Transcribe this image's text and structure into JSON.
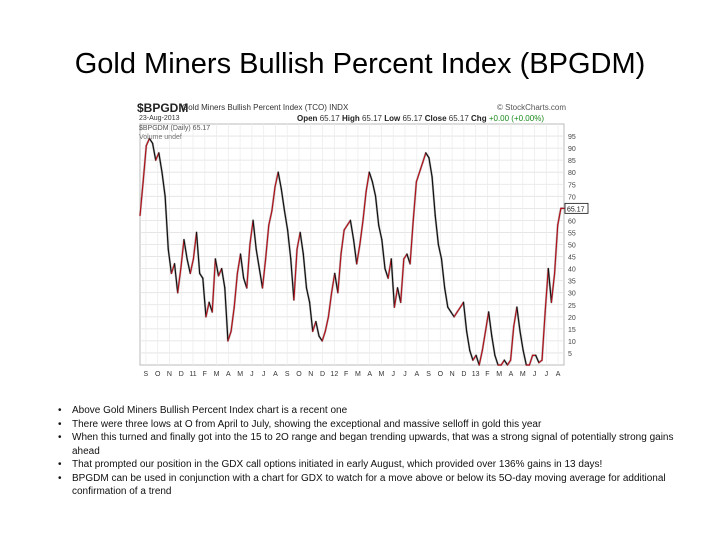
{
  "slide": {
    "title": "Gold Miners Bullish Percent Index (BPGDM)",
    "bullets": [
      "Above Gold Miners Bullish Percent Index chart is a recent one",
      "There were three lows at O from April to July, showing the exceptional and massive selloff in gold this year",
      "When this turned and finally got into the 15 to 2O range and  began trending upwards, that was a strong signal of potentially strong gains ahead",
      "That prompted our position in the GDX call options initiated in early August, which provided over 136% gains in 13 days!",
      "BPGDM can be used in conjunction with a chart for GDX to watch for a move above or below its 5O-day moving average for additional confirmation of a trend"
    ]
  },
  "chart_header": {
    "ticker": "$BPGDM",
    "name": "Gold Miners Bullish Percent Index (TCO) INDX",
    "brand": "© StockCharts.com",
    "date": "23-Aug-2013",
    "open_label": "Open",
    "open": "65.17",
    "high_label": "High",
    "high": "65.17",
    "low_label": "Low",
    "low": "65.17",
    "close_label": "Close",
    "close": "65.17",
    "chg_label": "Chg",
    "chg": "+0.00 (+0.00%)",
    "legend_series": "$BPGDM (Daily) 65.17",
    "legend_volume": "Volume undef"
  },
  "chart_data": {
    "type": "line",
    "ylim": [
      0,
      100
    ],
    "yticks": [
      5,
      10,
      15,
      20,
      25,
      30,
      35,
      40,
      45,
      50,
      55,
      60,
      65,
      70,
      75,
      80,
      85,
      90,
      95
    ],
    "ytick_labels": [
      "5",
      "10",
      "15",
      "20",
      "25",
      "30",
      "35",
      "40",
      "45",
      "50",
      "55",
      "60",
      "65",
      "70",
      "75",
      "80",
      "85",
      "90",
      "95"
    ],
    "xlabels": [
      "S",
      "O",
      "N",
      "D",
      "11",
      "F",
      "M",
      "A",
      "M",
      "J",
      "J",
      "A",
      "S",
      "O",
      "N",
      "D",
      "12",
      "F",
      "M",
      "A",
      "M",
      "J",
      "J",
      "A",
      "S",
      "O",
      "N",
      "D",
      "13",
      "F",
      "M",
      "A",
      "M",
      "J",
      "J",
      "A"
    ],
    "last_value_label": "65.17",
    "series": [
      {
        "values": [
          62,
          76,
          91,
          94,
          92,
          85,
          88,
          80,
          70,
          48,
          38,
          42,
          30,
          40,
          52,
          44,
          38,
          44,
          55,
          38,
          36,
          20,
          26,
          22,
          44,
          37,
          40,
          32,
          10,
          14,
          24,
          38,
          46,
          36,
          32,
          50,
          60,
          48,
          40,
          32,
          44,
          58,
          64,
          74,
          80,
          73,
          64,
          56,
          44,
          27,
          48,
          55,
          46,
          32,
          26,
          14,
          18,
          12,
          10,
          14,
          20,
          30,
          38,
          30,
          46,
          56,
          58,
          60,
          52,
          42,
          50,
          60,
          72,
          80,
          76,
          70,
          58,
          52,
          40,
          36,
          44,
          24,
          32,
          26,
          44,
          46,
          42,
          60,
          76,
          80,
          84,
          88,
          86,
          78,
          62,
          50,
          44,
          32,
          24,
          22,
          20,
          22,
          24,
          26,
          14,
          6,
          2,
          4,
          0,
          6,
          14,
          22,
          12,
          4,
          0,
          0,
          2,
          0,
          2,
          16,
          24,
          14,
          6,
          0,
          0,
          4,
          4,
          1,
          2,
          22,
          40,
          26,
          38,
          58,
          65,
          65
        ]
      }
    ]
  }
}
